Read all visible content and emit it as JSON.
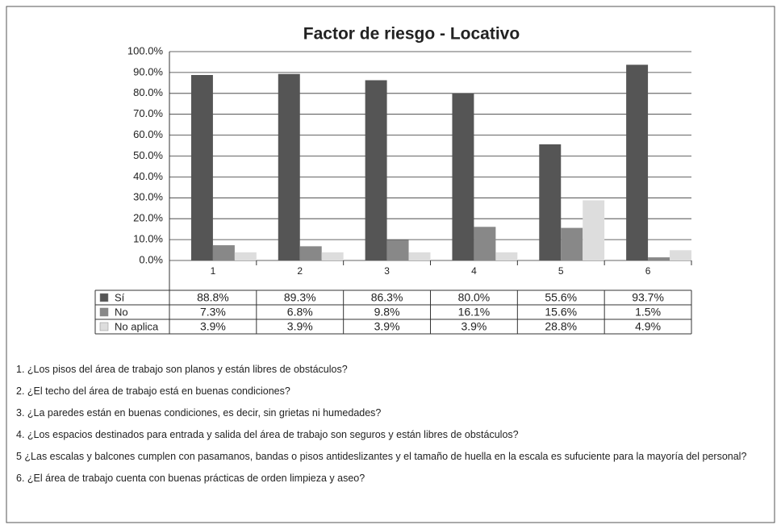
{
  "chart_data": {
    "type": "bar",
    "title": "Factor de riesgo - Locativo",
    "categories": [
      "1",
      "2",
      "3",
      "4",
      "5",
      "6"
    ],
    "series": [
      {
        "name": "Sí",
        "color": "#555555",
        "values": [
          88.8,
          89.3,
          86.3,
          80.0,
          55.6,
          93.7
        ],
        "value_labels": [
          "88.8%",
          "89.3%",
          "86.3%",
          "80.0%",
          "55.6%",
          "93.7%"
        ]
      },
      {
        "name": "No",
        "color": "#888888",
        "values": [
          7.3,
          6.8,
          9.8,
          16.1,
          15.6,
          1.5
        ],
        "value_labels": [
          "7.3%",
          "6.8%",
          "9.8%",
          "16.1%",
          "15.6%",
          "1.5%"
        ]
      },
      {
        "name": "No aplica",
        "color": "#dddddd",
        "values": [
          3.9,
          3.9,
          3.9,
          3.9,
          28.8,
          4.9
        ],
        "value_labels": [
          "3.9%",
          "3.9%",
          "3.9%",
          "3.9%",
          "28.8%",
          "4.9%"
        ]
      }
    ],
    "ylim": [
      0,
      100
    ],
    "yticks": [
      {
        "value": 0,
        "label": "0.0%"
      },
      {
        "value": 10,
        "label": "10.0%"
      },
      {
        "value": 20,
        "label": "20.0%"
      },
      {
        "value": 30,
        "label": "30.0%"
      },
      {
        "value": 40,
        "label": "40.0%"
      },
      {
        "value": 50,
        "label": "50.0%"
      },
      {
        "value": 60,
        "label": "60.0%"
      },
      {
        "value": 70,
        "label": "70.0%"
      },
      {
        "value": 80,
        "label": "80.0%"
      },
      {
        "value": 90,
        "label": "90.0%"
      },
      {
        "value": 100,
        "label": "100.0%"
      }
    ],
    "grid": true,
    "questions": [
      "1. ¿Los pisos del área de trabajo son planos y están libres de obstáculos?",
      "2. ¿El techo del área de trabajo está en buenas condiciones?",
      "3. ¿La paredes están en buenas condiciones, es decir, sin grietas ni humedades?",
      "4. ¿Los espacios destinados para entrada y salida del área de trabajo son seguros y están libres de obstáculos?",
      "5 ¿Las escalas y balcones cumplen con pasamanos, bandas o pisos antideslizantes y el tamaño de huella en la escala es sufuciente para la mayoría del personal?",
      "6. ¿El área de trabajo cuenta con buenas prácticas de orden limpieza y aseo?"
    ]
  }
}
